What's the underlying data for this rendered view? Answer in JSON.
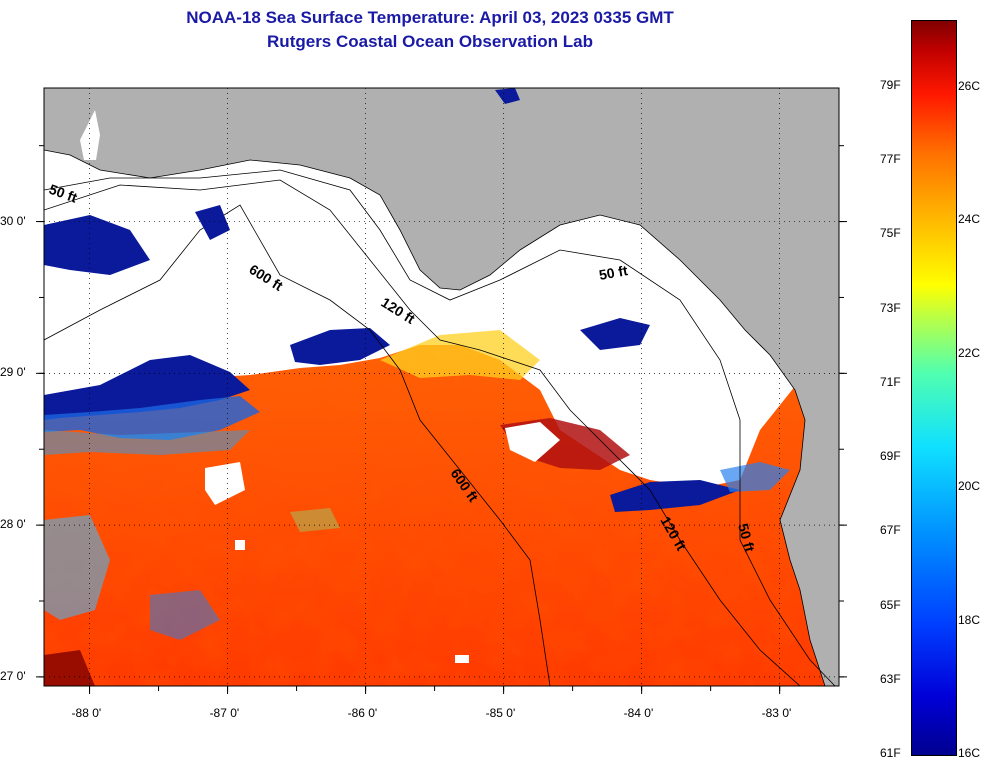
{
  "title": {
    "line1": "NOAA-18 Sea Surface Temperature:  April 03, 2023 0335 GMT",
    "line2": "Rutgers Coastal Ocean Observation Lab"
  },
  "axes": {
    "lat_ticks": [
      {
        "value": 30.0,
        "label": "30 0'"
      },
      {
        "value": 29.0,
        "label": "29 0'"
      },
      {
        "value": 28.0,
        "label": "28 0'"
      },
      {
        "value": 27.0,
        "label": "27 0'"
      }
    ],
    "lon_ticks": [
      {
        "value": -88.0,
        "label": "-88 0'"
      },
      {
        "value": -87.0,
        "label": "-87 0'"
      },
      {
        "value": -86.0,
        "label": "-86 0'"
      },
      {
        "value": -85.0,
        "label": "-85 0'"
      },
      {
        "value": -84.0,
        "label": "-84 0'"
      },
      {
        "value": -83.0,
        "label": "-83 0'"
      }
    ],
    "lon_range": [
      -88.33,
      -82.57
    ],
    "lat_range": [
      26.94,
      30.88
    ]
  },
  "contours": [
    {
      "label": "50 ft"
    },
    {
      "label": "600 ft"
    },
    {
      "label": "120 ft"
    },
    {
      "label": "50 ft"
    },
    {
      "label": "600 ft"
    },
    {
      "label": "120 ft"
    },
    {
      "label": "50 ft"
    }
  ],
  "colorbar": {
    "f_labels": [
      "79F",
      "77F",
      "75F",
      "73F",
      "71F",
      "69F",
      "67F",
      "65F",
      "63F",
      "61F"
    ],
    "c_labels": [
      "26C",
      "24C",
      "22C",
      "20C",
      "18C",
      "16C"
    ]
  },
  "colors": {
    "land": "#b0b0b0",
    "cloud": "#ffffff",
    "warm": "#ff4a0a",
    "cold": "#00148c",
    "title": "#1a1aa6"
  }
}
